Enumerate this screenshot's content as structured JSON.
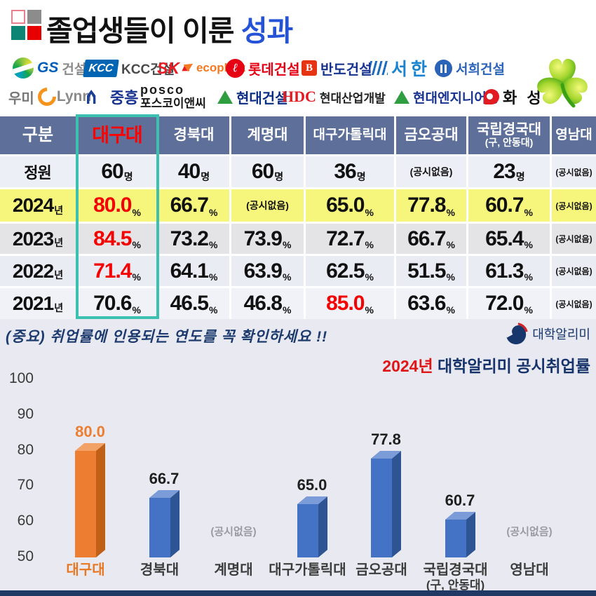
{
  "header": {
    "title_black": "졸업생들이 이룬 ",
    "title_accent": "성과"
  },
  "logos": {
    "row1": [
      {
        "mark": "GS",
        "label": "건설"
      },
      {
        "mark": "KCC",
        "label": "KCC건설"
      },
      {
        "mark": "SK",
        "label": "ecoplant"
      },
      {
        "mark": "ℓ",
        "label": "롯데건설"
      },
      {
        "mark": "B",
        "label": "반도건설"
      },
      {
        "mark": "",
        "label": "서한"
      },
      {
        "mark": "",
        "label": "서희건설"
      }
    ],
    "row2": [
      {
        "mark": "우미",
        "label": "Lynn"
      },
      {
        "mark": "",
        "label": "중흥"
      },
      {
        "mark": "posco",
        "label": "포스코이앤씨"
      },
      {
        "mark": "",
        "label": "현대건설"
      },
      {
        "mark": "HDC",
        "label": "현대산업개발"
      },
      {
        "mark": "",
        "label": "현대엔지니어링"
      },
      {
        "mark": "",
        "label": "화 성"
      }
    ]
  },
  "table": {
    "corner": "구분",
    "columns": [
      {
        "label": "대구대"
      },
      {
        "label": "경북대"
      },
      {
        "label": "계명대"
      },
      {
        "label": "대구가톨릭대"
      },
      {
        "label": "금오공대"
      },
      {
        "label": "국립경국대",
        "sub": "(구, 안동대)"
      },
      {
        "label": "영남대"
      }
    ],
    "rows": [
      {
        "label": "정원",
        "suffix": "",
        "cells": [
          {
            "v": "60",
            "u": "명"
          },
          {
            "v": "40",
            "u": "명"
          },
          {
            "v": "60",
            "u": "명"
          },
          {
            "v": "36",
            "u": "명"
          },
          {
            "v": "(공시없음)",
            "u": ""
          },
          {
            "v": "23",
            "u": "명"
          },
          {
            "v": "(공시없음)",
            "u": ""
          }
        ]
      },
      {
        "label": "2024",
        "suffix": "년",
        "highlight": true,
        "cells": [
          {
            "v": "80.0",
            "u": "%",
            "red": true
          },
          {
            "v": "66.7",
            "u": "%"
          },
          {
            "v": "(공시없음)",
            "u": ""
          },
          {
            "v": "65.0",
            "u": "%"
          },
          {
            "v": "77.8",
            "u": "%"
          },
          {
            "v": "60.7",
            "u": "%"
          },
          {
            "v": "(공시없음)",
            "u": ""
          }
        ]
      },
      {
        "label": "2023",
        "suffix": "년",
        "cells": [
          {
            "v": "84.5",
            "u": "%",
            "red": true
          },
          {
            "v": "73.2",
            "u": "%"
          },
          {
            "v": "73.9",
            "u": "%"
          },
          {
            "v": "72.7",
            "u": "%"
          },
          {
            "v": "66.7",
            "u": "%"
          },
          {
            "v": "65.4",
            "u": "%"
          },
          {
            "v": "(공시없음)",
            "u": ""
          }
        ]
      },
      {
        "label": "2022",
        "suffix": "년",
        "cells": [
          {
            "v": "71.4",
            "u": "%",
            "red": true
          },
          {
            "v": "64.1",
            "u": "%"
          },
          {
            "v": "63.9",
            "u": "%"
          },
          {
            "v": "62.5",
            "u": "%"
          },
          {
            "v": "51.5",
            "u": "%"
          },
          {
            "v": "61.3",
            "u": "%"
          },
          {
            "v": "(공시없음)",
            "u": ""
          }
        ]
      },
      {
        "label": "2021",
        "suffix": "년",
        "cells": [
          {
            "v": "70.6",
            "u": "%"
          },
          {
            "v": "46.5",
            "u": "%"
          },
          {
            "v": "46.8",
            "u": "%"
          },
          {
            "v": "85.0",
            "u": "%",
            "red": true
          },
          {
            "v": "63.6",
            "u": "%"
          },
          {
            "v": "72.0",
            "u": "%"
          },
          {
            "v": "(공시없음)",
            "u": ""
          }
        ]
      }
    ]
  },
  "footnote": {
    "note": "(중요) 취업률에 인용되는 연도를 꼭 확인하세요 !!",
    "source_label": "대학알리미"
  },
  "chart_data": {
    "type": "bar",
    "title_highlight": "2024년",
    "title_rest": " 대학알리미 공시취업률",
    "categories": [
      "대구대",
      "경북대",
      "계명대",
      "대구가톨릭대",
      "금오공대",
      "국립경국대\n(구, 안동대)",
      "영남대"
    ],
    "values": [
      80.0,
      66.7,
      null,
      65.0,
      77.8,
      60.7,
      null
    ],
    "value_labels": [
      "80.0",
      "66.7",
      "(공시없음)",
      "65.0",
      "77.8",
      "60.7",
      "(공시없음)"
    ],
    "no_data_text": "(공시없음)",
    "ylim": [
      50,
      100
    ],
    "yticks": [
      100,
      90,
      80,
      70,
      60,
      50
    ],
    "grid": false,
    "legend": false,
    "highlight_index": 0,
    "bar_color": "#4472c4",
    "bar_color_highlight": "#ed7d31"
  },
  "colors": {
    "title_accent_blue": "#2453d8",
    "value_red": "#f40000",
    "navy_text": "#17336b",
    "teal_outline": "#3cc0b0",
    "table_header_bg": "#5e7099",
    "row_highlight_yellow": "#f6f67d",
    "bar_blue": "#4472c4",
    "bar_orange": "#ed7d31",
    "section_bg": "#e9eaf1",
    "footer_bar": "#203864"
  }
}
